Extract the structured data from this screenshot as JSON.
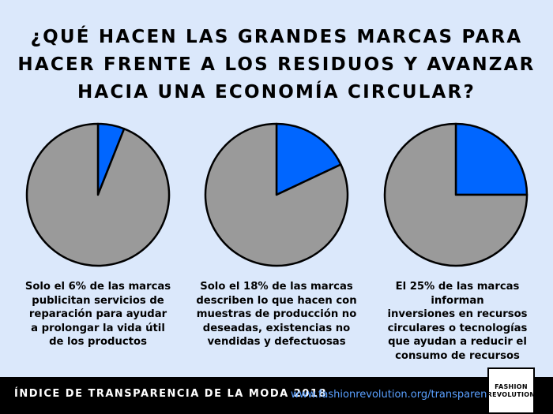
{
  "title_lines": [
    "¿QUÉ HACEN LAS GRANDES MARCAS PARA",
    "HACER FRENTE A LOS RESIDUOS Y AVANZAR",
    "HACIA UNA ECONOMÍA CIRCULAR?"
  ],
  "colors": {
    "highlight": "#0066ff",
    "rest": "#9a9a9a",
    "outline": "#000000",
    "background": "#dbe8fb"
  },
  "chart_data": [
    {
      "type": "pie",
      "slices": [
        {
          "value": 6
        },
        {
          "value": 94
        }
      ],
      "caption": [
        "Solo el 6% de las marcas",
        "publicitan servicios de",
        "reparación para ayudar",
        "a prolongar la vida útil",
        "de los productos"
      ]
    },
    {
      "type": "pie",
      "slices": [
        {
          "value": 18
        },
        {
          "value": 82
        }
      ],
      "caption": [
        "Solo el 18% de las marcas",
        "describen lo que hacen con",
        "muestras de producción no",
        "deseadas, existencias no",
        "vendidas y defectuosas"
      ]
    },
    {
      "type": "pie",
      "slices": [
        {
          "value": 25
        },
        {
          "value": 75
        }
      ],
      "caption": [
        "El 25% de las marcas informan",
        "inversiones en recursos",
        "circulares o tecnologías",
        "que ayudan a reducir el",
        "consumo de recursos"
      ]
    }
  ],
  "footer": {
    "label": "ÍNDICE DE TRANSPARENCIA DE LA MODA 2018",
    "url": "www.fashionrevolution.org/transparency"
  },
  "logo": {
    "line1": "FASHION",
    "line2": "REVOLUTION"
  }
}
